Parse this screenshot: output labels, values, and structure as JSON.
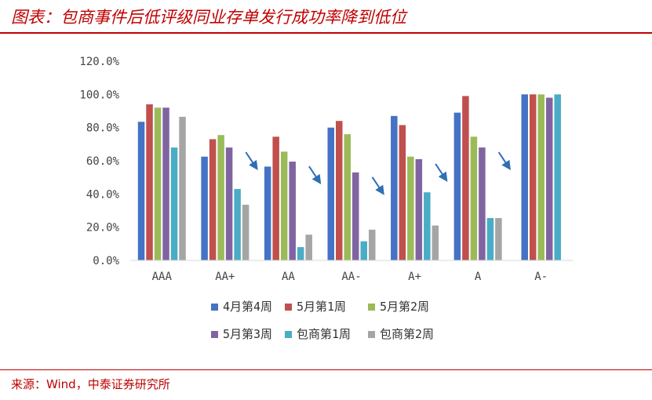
{
  "title": "图表：包商事件后低评级同业存单发行成功率降到低位",
  "source": "来源：Wind，中泰证券研究所",
  "chart_data": {
    "type": "bar",
    "categories": [
      "AAA",
      "AA+",
      "AA",
      "AA-",
      "A+",
      "A",
      "A-"
    ],
    "ylim": [
      0,
      120
    ],
    "yticks": [
      "0.0%",
      "20.0%",
      "40.0%",
      "60.0%",
      "80.0%",
      "100.0%",
      "120.0%"
    ],
    "yticks_values": [
      0,
      20,
      40,
      60,
      80,
      100,
      120
    ],
    "grid": false,
    "legend_position": "bottom",
    "series": [
      {
        "name": "4月第4周",
        "color": "#4472c4",
        "values": [
          83.5,
          62.5,
          56.5,
          80,
          87,
          89,
          100
        ]
      },
      {
        "name": "5月第1周",
        "color": "#c0504d",
        "values": [
          94,
          73,
          74.5,
          84,
          81.5,
          99,
          100
        ]
      },
      {
        "name": "5月第2周",
        "color": "#9bbb59",
        "values": [
          92,
          75.5,
          65.5,
          76,
          62.5,
          74.5,
          100
        ]
      },
      {
        "name": "5月第3周",
        "color": "#8064a2",
        "values": [
          92,
          68,
          59.5,
          53,
          61,
          68,
          98
        ]
      },
      {
        "name": "包商第1周",
        "color": "#4bacc6",
        "values": [
          68,
          43,
          8,
          11.5,
          41,
          25.5,
          100
        ]
      },
      {
        "name": "包商第2周",
        "color": "#a5a5a5",
        "values": [
          86.5,
          33.5,
          15.5,
          18.5,
          21,
          25.5,
          null
        ]
      }
    ],
    "annotations": [
      "down-arrow",
      "down-arrow",
      "down-arrow",
      "down-arrow",
      "down-arrow",
      "down-arrow"
    ]
  },
  "colors": {
    "accent": "#c00000",
    "arrow": "#2e6fb5"
  }
}
